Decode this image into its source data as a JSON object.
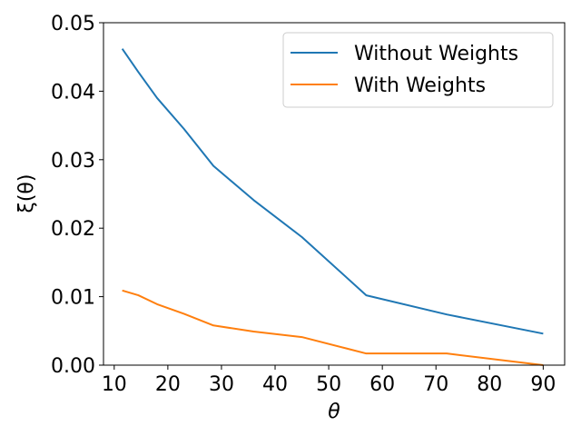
{
  "chart_data": {
    "type": "line",
    "title": "",
    "xlabel": "θ",
    "ylabel": "ξ(θ)",
    "xlim": [
      8,
      94
    ],
    "ylim": [
      0,
      0.05
    ],
    "xticks": [
      10,
      20,
      30,
      40,
      50,
      60,
      70,
      80,
      90
    ],
    "xtick_labels": [
      "10",
      "20",
      "30",
      "40",
      "50",
      "60",
      "70",
      "80",
      "90"
    ],
    "yticks": [
      0,
      0.01,
      0.02,
      0.03,
      0.04,
      0.05
    ],
    "ytick_labels": [
      "0.00",
      "0.01",
      "0.02",
      "0.03",
      "0.04",
      "0.05"
    ],
    "grid": false,
    "legend_position": "top-right",
    "series": [
      {
        "name": "Without Weights",
        "color": "#1f77b4",
        "x": [
          11.5,
          14.5,
          18,
          23,
          28.5,
          36,
          45,
          57,
          72,
          90
        ],
        "y": [
          0.0462,
          0.0428,
          0.039,
          0.0345,
          0.0291,
          0.0241,
          0.0187,
          0.0102,
          0.0074,
          0.0046
        ]
      },
      {
        "name": "With Weights",
        "color": "#ff7f0e",
        "x": [
          11.5,
          14.5,
          18,
          23,
          28.5,
          36,
          45,
          57,
          72,
          90
        ],
        "y": [
          0.0109,
          0.0102,
          0.0089,
          0.0075,
          0.0058,
          0.0049,
          0.0041,
          0.0017,
          0.0017,
          0.0
        ]
      }
    ]
  }
}
